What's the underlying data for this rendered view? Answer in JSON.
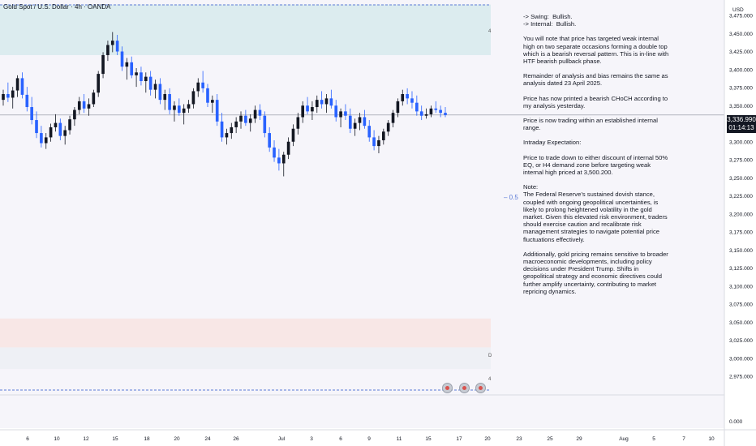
{
  "chart_data": {
    "type": "candlestick",
    "title": "Gold Spot / U.S. Dollar · 4h · OANDA",
    "currency": "USD",
    "ylim": [
      2975,
      3475
    ],
    "y_ticks": [
      "3,475.000",
      "3,450.000",
      "3,425.000",
      "3,400.000",
      "3,375.000",
      "3,350.000",
      "3,325.000",
      "3,300.000",
      "3,275.000",
      "3,250.000",
      "3,225.000",
      "3,200.000",
      "3,175.000",
      "3,150.000",
      "3,125.000",
      "3,100.000",
      "3,075.000",
      "3,050.000",
      "3,025.000",
      "3,000.000",
      "2,975.000"
    ],
    "y_bottom_label": "0.000",
    "x_ticks": [
      "6",
      "10",
      "12",
      "15",
      "18",
      "20",
      "24",
      "26",
      "Jul",
      "3",
      "6",
      "9",
      "11",
      "15",
      "17",
      "20",
      "23",
      "25",
      "29",
      "Aug",
      "5",
      "7",
      "10"
    ],
    "last_price": "3,336.990",
    "countdown": "01:14:13",
    "zones": [
      {
        "name": "supply",
        "from": 3420,
        "to": 3490,
        "color": "#dcecef"
      },
      {
        "name": "demand",
        "from": 3015,
        "to": 3055,
        "color": "#f8e7e6"
      },
      {
        "name": "discount",
        "from": 2985,
        "to": 3015,
        "color": "#eef0f5"
      }
    ],
    "zone_markers": [
      "4",
      "D",
      "4"
    ],
    "eq_label": "0.5",
    "colors": {
      "up": "#131722",
      "down": "#2962ff",
      "bg": "#f6f5fa"
    },
    "candles": [
      [
        3358,
        3372,
        3350,
        3366
      ],
      [
        3366,
        3382,
        3355,
        3361
      ],
      [
        3361,
        3376,
        3346,
        3371
      ],
      [
        3371,
        3392,
        3362,
        3388
      ],
      [
        3388,
        3396,
        3360,
        3365
      ],
      [
        3365,
        3376,
        3342,
        3348
      ],
      [
        3348,
        3362,
        3324,
        3330
      ],
      [
        3330,
        3342,
        3305,
        3312
      ],
      [
        3312,
        3322,
        3292,
        3298
      ],
      [
        3298,
        3312,
        3290,
        3306
      ],
      [
        3306,
        3325,
        3300,
        3320
      ],
      [
        3320,
        3338,
        3314,
        3326
      ],
      [
        3326,
        3332,
        3302,
        3308
      ],
      [
        3308,
        3322,
        3296,
        3316
      ],
      [
        3316,
        3336,
        3310,
        3331
      ],
      [
        3331,
        3348,
        3322,
        3344
      ],
      [
        3344,
        3362,
        3338,
        3356
      ],
      [
        3356,
        3366,
        3340,
        3346
      ],
      [
        3346,
        3360,
        3336,
        3352
      ],
      [
        3352,
        3372,
        3348,
        3368
      ],
      [
        3368,
        3398,
        3362,
        3394
      ],
      [
        3394,
        3424,
        3388,
        3420
      ],
      [
        3420,
        3440,
        3412,
        3434
      ],
      [
        3434,
        3452,
        3424,
        3440
      ],
      [
        3440,
        3448,
        3420,
        3425
      ],
      [
        3425,
        3432,
        3398,
        3404
      ],
      [
        3404,
        3416,
        3386,
        3410
      ],
      [
        3410,
        3418,
        3388,
        3392
      ],
      [
        3392,
        3402,
        3376,
        3396
      ],
      [
        3396,
        3404,
        3378,
        3384
      ],
      [
        3384,
        3396,
        3368,
        3390
      ],
      [
        3390,
        3398,
        3364,
        3372
      ],
      [
        3372,
        3386,
        3360,
        3380
      ],
      [
        3380,
        3388,
        3352,
        3358
      ],
      [
        3358,
        3372,
        3344,
        3366
      ],
      [
        3366,
        3374,
        3338,
        3344
      ],
      [
        3344,
        3356,
        3328,
        3350
      ],
      [
        3350,
        3360,
        3336,
        3340
      ],
      [
        3340,
        3352,
        3324,
        3346
      ],
      [
        3346,
        3358,
        3340,
        3352
      ],
      [
        3352,
        3374,
        3346,
        3370
      ],
      [
        3370,
        3388,
        3362,
        3382
      ],
      [
        3382,
        3398,
        3368,
        3374
      ],
      [
        3374,
        3380,
        3348,
        3354
      ],
      [
        3354,
        3364,
        3340,
        3358
      ],
      [
        3358,
        3366,
        3322,
        3328
      ],
      [
        3328,
        3340,
        3300,
        3306
      ],
      [
        3306,
        3318,
        3296,
        3312
      ],
      [
        3312,
        3326,
        3304,
        3320
      ],
      [
        3320,
        3334,
        3312,
        3328
      ],
      [
        3328,
        3342,
        3318,
        3336
      ],
      [
        3336,
        3344,
        3322,
        3326
      ],
      [
        3326,
        3338,
        3314,
        3332
      ],
      [
        3332,
        3350,
        3326,
        3344
      ],
      [
        3344,
        3352,
        3330,
        3336
      ],
      [
        3336,
        3342,
        3306,
        3312
      ],
      [
        3312,
        3320,
        3286,
        3292
      ],
      [
        3292,
        3302,
        3272,
        3278
      ],
      [
        3278,
        3290,
        3260,
        3270
      ],
      [
        3270,
        3286,
        3252,
        3282
      ],
      [
        3282,
        3306,
        3276,
        3300
      ],
      [
        3300,
        3324,
        3294,
        3318
      ],
      [
        3318,
        3340,
        3310,
        3334
      ],
      [
        3334,
        3356,
        3326,
        3350
      ],
      [
        3350,
        3362,
        3338,
        3342
      ],
      [
        3342,
        3356,
        3330,
        3348
      ],
      [
        3348,
        3364,
        3340,
        3358
      ],
      [
        3358,
        3370,
        3346,
        3352
      ],
      [
        3352,
        3366,
        3340,
        3360
      ],
      [
        3360,
        3372,
        3346,
        3350
      ],
      [
        3350,
        3358,
        3328,
        3334
      ],
      [
        3334,
        3346,
        3320,
        3342
      ],
      [
        3342,
        3352,
        3330,
        3336
      ],
      [
        3336,
        3346,
        3312,
        3318
      ],
      [
        3318,
        3332,
        3308,
        3326
      ],
      [
        3326,
        3340,
        3316,
        3334
      ],
      [
        3334,
        3344,
        3318,
        3322
      ],
      [
        3322,
        3330,
        3300,
        3306
      ],
      [
        3306,
        3316,
        3288,
        3294
      ],
      [
        3294,
        3308,
        3284,
        3302
      ],
      [
        3302,
        3318,
        3296,
        3314
      ],
      [
        3314,
        3330,
        3308,
        3326
      ],
      [
        3326,
        3344,
        3320,
        3340
      ],
      [
        3340,
        3360,
        3334,
        3356
      ],
      [
        3356,
        3372,
        3350,
        3366
      ],
      [
        3366,
        3374,
        3352,
        3360
      ],
      [
        3360,
        3370,
        3346,
        3354
      ],
      [
        3354,
        3364,
        3336,
        3342
      ],
      [
        3342,
        3350,
        3330,
        3336
      ],
      [
        3336,
        3346,
        3332,
        3338
      ],
      [
        3338,
        3350,
        3334,
        3346
      ],
      [
        3346,
        3356,
        3340,
        3344
      ],
      [
        3344,
        3350,
        3334,
        3340
      ],
      [
        3340,
        3348,
        3334,
        3337
      ]
    ]
  },
  "notes": [
    "-> Swing:  Bullish.\n-> Internal:  Bullish.",
    "You will note that price has targeted weak internal high on two separate occasions forming a double top which is a bearish reversal pattern. This is in-line with HTF bearish pullback phase.",
    "Remainder of analysis and bias remains the same as analysis dated 23 April 2025.",
    "Price has now printed a bearish CHoCH according to my analysis yesterday.",
    "Price is now trading within an established internal range.",
    "Intraday Expectation:",
    "Price to trade down to either discount of internal 50% EQ, or H4 demand zone before targeting weak internal high priced at 3,500.200.",
    "Note:\nThe Federal Reserve’s sustained dovish stance, coupled with ongoing geopolitical uncertainties, is likely to prolong heightened volatility in the gold market. Given this elevated risk environment, traders should exercise caution and recalibrate risk management strategies to navigate potential price fluctuations effectively.",
    "Additionally, gold pricing remains sensitive to broader macroeconomic developments, including policy decisions under President Trump. Shifts in geopolitical strategy and economic directives could further amplify uncertainty, contributing to market repricing dynamics."
  ]
}
